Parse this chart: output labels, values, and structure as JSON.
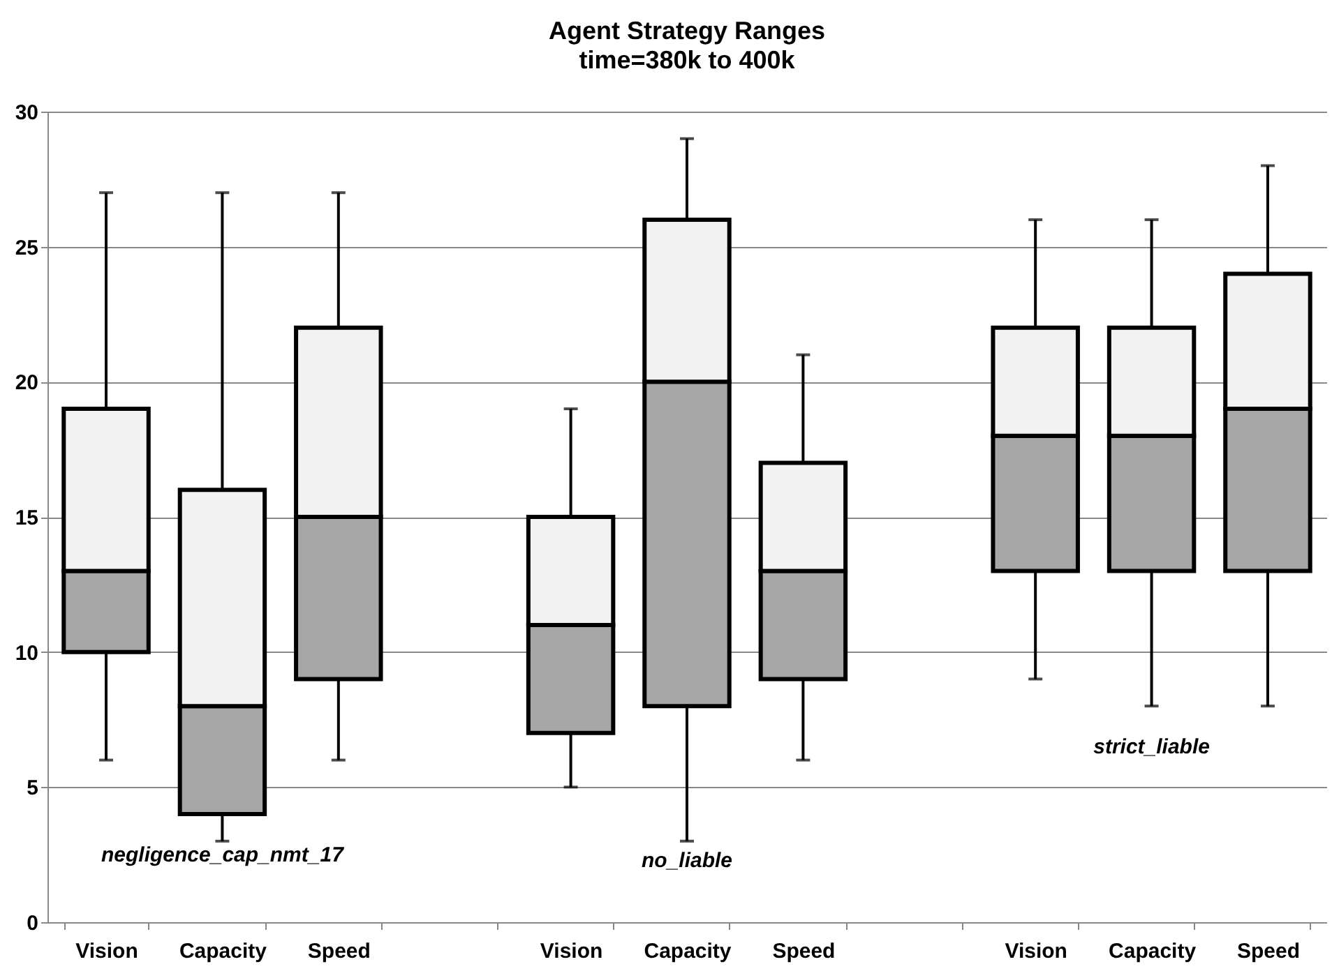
{
  "chart_data": {
    "type": "box",
    "title": "Agent Strategy Ranges",
    "subtitle": "time=380k to 400k",
    "categories": [
      "Vision",
      "Capacity",
      "Speed",
      null,
      "Vision",
      "Capacity",
      "Speed",
      null,
      "Vision",
      "Capacity",
      "Speed"
    ],
    "boxes": [
      {
        "low": 6,
        "q1": 10,
        "median": 13,
        "q3": 19,
        "high": 27
      },
      {
        "low": 3,
        "q1": 4,
        "median": 8,
        "q3": 16,
        "high": 27
      },
      {
        "low": 6,
        "q1": 9,
        "median": 15,
        "q3": 22,
        "high": 27
      },
      null,
      {
        "low": 5,
        "q1": 7,
        "median": 11,
        "q3": 15,
        "high": 19
      },
      {
        "low": 3,
        "q1": 8,
        "median": 20,
        "q3": 26,
        "high": 29
      },
      {
        "low": 6,
        "q1": 9,
        "median": 13,
        "q3": 17,
        "high": 21
      },
      null,
      {
        "low": 9,
        "q1": 13,
        "median": 18,
        "q3": 22,
        "high": 26
      },
      {
        "low": 8,
        "q1": 13,
        "median": 18,
        "q3": 22,
        "high": 26
      },
      {
        "low": 8,
        "q1": 13,
        "median": 19,
        "q3": 24,
        "high": 28
      }
    ],
    "annotations": [
      "negligence_cap_nmt_17",
      "no_liable",
      "strict_liable"
    ],
    "ylim": [
      0,
      30
    ],
    "yticks": [
      0,
      5,
      10,
      15,
      20,
      25,
      30
    ],
    "grid": "y"
  }
}
